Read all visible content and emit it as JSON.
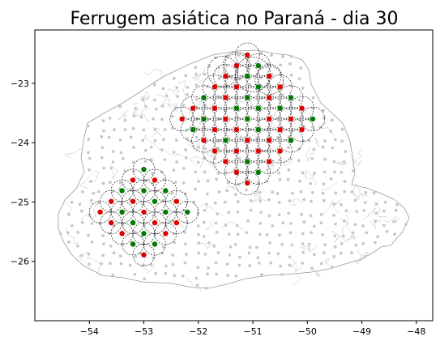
{
  "title": "Ferrugem asiática no Paraná - dia 30",
  "colors": {
    "positive": "#e00000",
    "negative": "#007a00",
    "station": "#c8c8c8",
    "border": "#9a9a9a",
    "circle": "#000000"
  },
  "chart_data": {
    "type": "scatter",
    "title": "Ferrugem asiática no Paraná - dia 30",
    "xlabel": "",
    "ylabel": "",
    "xlim": [
      -55.0,
      -47.7
    ],
    "ylim": [
      -27.0,
      -22.1
    ],
    "x_ticks": [
      "−54",
      "−53",
      "−52",
      "−51",
      "−50",
      "−49",
      "−48"
    ],
    "y_ticks": [
      "−23",
      "−24",
      "−25",
      "−26"
    ],
    "grid": false,
    "legend": "none",
    "clusters": [
      {
        "name": "north",
        "center": [
          -51.1,
          -23.6
        ],
        "step": [
          0.2,
          0.18
        ],
        "radius_rows": 6,
        "circle_radius_deg": 0.22,
        "big_circles": [
          [
            -51.0,
            -22.85,
            0.32
          ],
          [
            -51.55,
            -22.8,
            0.28
          ],
          [
            -50.7,
            -22.95,
            0.26
          ],
          [
            -51.3,
            -22.7,
            0.25
          ]
        ]
      },
      {
        "name": "southwest",
        "center": [
          -53.0,
          -25.17
        ],
        "step": [
          0.2,
          0.18
        ],
        "radius_rows": 5,
        "circle_radius_deg": 0.2,
        "big_circles": [
          [
            -53.0,
            -25.17,
            0.0
          ]
        ]
      }
    ]
  }
}
